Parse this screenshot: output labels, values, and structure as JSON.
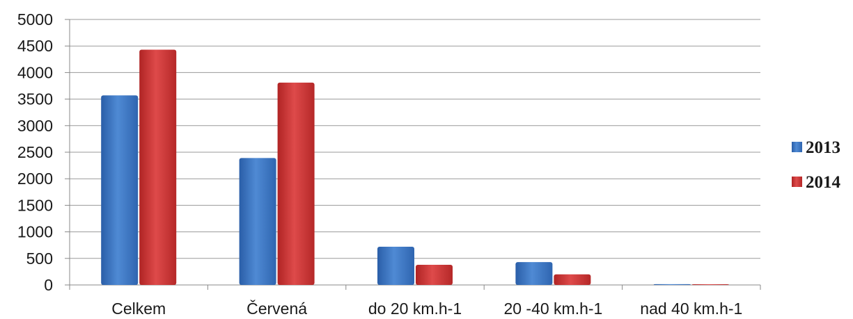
{
  "chart_data": {
    "type": "bar",
    "title": "",
    "xlabel": "",
    "ylabel": "",
    "categories": [
      "Celkem",
      "Červená",
      "do 20 km.h-1",
      "20 -40 km.h-1",
      "nad 40 km.h-1"
    ],
    "series": [
      {
        "name": "2013",
        "color": "#3f78c4",
        "values": [
          3570,
          2390,
          720,
          430,
          15
        ]
      },
      {
        "name": "2014",
        "color": "#cf3535",
        "values": [
          4430,
          3810,
          380,
          200,
          3
        ]
      }
    ],
    "ylim": [
      0,
      5000
    ],
    "yticks": [
      "0",
      "500",
      "1000",
      "1500",
      "2000",
      "2500",
      "3000",
      "3500",
      "4000",
      "4500",
      "5000"
    ],
    "grid": true,
    "legend_position": "right"
  }
}
